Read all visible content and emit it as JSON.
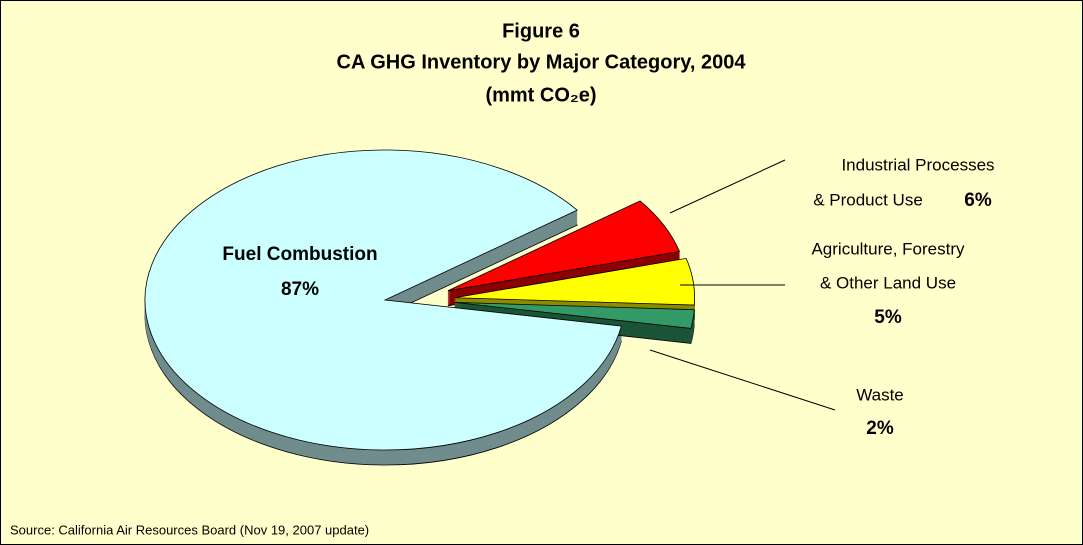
{
  "chart_data": {
    "type": "pie",
    "title": "Figure 6",
    "subtitle": "CA GHG Inventory by Major Category, 2004",
    "unit_label": "(mmt CO₂e)",
    "categories": [
      [
        "Fuel Combustion"
      ],
      [
        "Industrial Processes",
        "& Product Use"
      ],
      [
        "Agriculture, Forestry",
        "& Other Land Use"
      ],
      [
        "Waste"
      ]
    ],
    "values": [
      87,
      6,
      5,
      2
    ],
    "value_labels": [
      "87%",
      "6%",
      "5%",
      "2%"
    ],
    "colors": [
      "#ccffff",
      "#ff0000",
      "#ffff00",
      "#339966"
    ],
    "source": "Source: California Air Resources Board (Nov 19, 2007 update)"
  }
}
